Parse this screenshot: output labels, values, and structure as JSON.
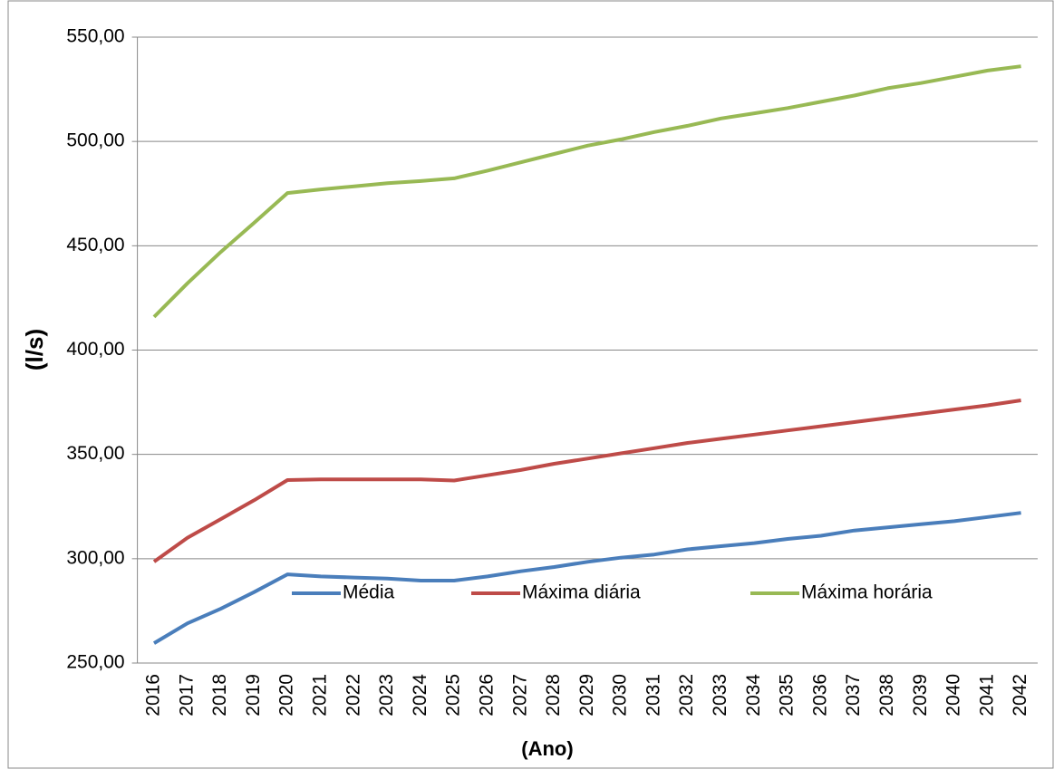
{
  "chart_data": {
    "type": "line",
    "y_label": "(l/s)",
    "x_label": "(Ano)",
    "categories": [
      "2016",
      "2017",
      "2018",
      "2019",
      "2020",
      "2021",
      "2022",
      "2023",
      "2024",
      "2025",
      "2026",
      "2027",
      "2028",
      "2029",
      "2030",
      "2031",
      "2032",
      "2033",
      "2034",
      "2035",
      "2036",
      "2037",
      "2038",
      "2039",
      "2040",
      "2041",
      "2042"
    ],
    "series": [
      {
        "name": "Média",
        "color": "#4a7ebb",
        "values": [
          259.5,
          269,
          276,
          284,
          292.5,
          291.5,
          291,
          290.5,
          289.5,
          289.5,
          291.5,
          294,
          296,
          298.5,
          300.5,
          302,
          304.5,
          306,
          307.5,
          309.5,
          311,
          313.5,
          315,
          316.5,
          318,
          320,
          322
        ]
      },
      {
        "name": "Máxima diária",
        "color": "#be4b48",
        "values": [
          298.6,
          310,
          319,
          328,
          337.7,
          338,
          338,
          338,
          338,
          337.5,
          340,
          342.5,
          345.5,
          348,
          350.5,
          353,
          355.5,
          357.5,
          359.5,
          361.5,
          363.5,
          365.5,
          367.5,
          369.5,
          371.5,
          373.5,
          375.9
        ]
      },
      {
        "name": "Máxima horária",
        "color": "#98b954",
        "values": [
          415.9,
          432,
          447,
          461,
          475.3,
          477,
          478.5,
          480,
          481,
          482.3,
          486,
          490,
          494,
          498,
          501,
          504.5,
          507.5,
          511,
          513.5,
          516,
          519,
          522,
          525.5,
          528,
          531,
          534,
          536
        ]
      }
    ],
    "ylim": [
      250,
      550
    ],
    "yticks": [
      {
        "value": 250,
        "label": "250,00"
      },
      {
        "value": 300,
        "label": "300,00"
      },
      {
        "value": 350,
        "label": "350,00"
      },
      {
        "value": 400,
        "label": "400,00"
      },
      {
        "value": 450,
        "label": "450,00"
      },
      {
        "value": 500,
        "label": "500,00"
      },
      {
        "value": 550,
        "label": "550,00"
      }
    ],
    "grid": true,
    "legend": "bottom"
  }
}
